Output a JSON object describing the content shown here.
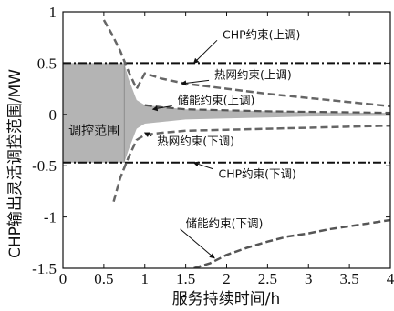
{
  "chart_data": {
    "type": "line",
    "title": "",
    "xlabel": "服务持续时间/h",
    "ylabel": "CHP输出灵活调控范围/MW",
    "xlim": [
      0,
      4
    ],
    "ylim": [
      -1.5,
      1
    ],
    "xticks": [
      0,
      0.5,
      1,
      1.5,
      2,
      2.5,
      3,
      3.5,
      4
    ],
    "xtick_labels": [
      "0",
      "0.5",
      "1",
      "1.5",
      "2",
      "2.5",
      "3",
      "3.5",
      "4"
    ],
    "yticks": [
      -1.5,
      -1,
      -0.5,
      0,
      0.5,
      1
    ],
    "ytick_labels": [
      "-1.5",
      "-1",
      "-0.5",
      "0",
      "0.5",
      "1"
    ],
    "grid": false,
    "legend": "none",
    "region": {
      "label": "调控范围",
      "color": "#b4b4b4",
      "upper": [
        [
          0,
          0.5
        ],
        [
          0.75,
          0.5
        ],
        [
          0.8,
          0.35
        ],
        [
          0.9,
          0.14
        ],
        [
          1,
          0.09
        ],
        [
          1.5,
          0.05
        ],
        [
          2,
          0.04
        ],
        [
          2.5,
          0.03
        ],
        [
          3,
          0.02
        ],
        [
          3.5,
          0.017
        ],
        [
          4,
          0.015
        ]
      ],
      "lower": [
        [
          0,
          -0.47
        ],
        [
          0.75,
          -0.47
        ],
        [
          0.8,
          -0.35
        ],
        [
          0.9,
          -0.14
        ],
        [
          1,
          -0.09
        ],
        [
          1.5,
          -0.05
        ],
        [
          2,
          -0.04
        ],
        [
          2.5,
          -0.03
        ],
        [
          3,
          -0.02
        ],
        [
          3.5,
          -0.017
        ],
        [
          4,
          -0.015
        ]
      ]
    },
    "series": [
      {
        "label": "CHP约束(上调)",
        "style": "dashdot",
        "color": "#111111",
        "width": 2,
        "points": [
          [
            0,
            0.5
          ],
          [
            4,
            0.5
          ]
        ]
      },
      {
        "label": "CHP约束(下调)",
        "style": "dashdot",
        "color": "#111111",
        "width": 2,
        "points": [
          [
            0,
            -0.47
          ],
          [
            4,
            -0.47
          ]
        ]
      },
      {
        "label": "热网约束(上调)",
        "style": "dash",
        "color": "#666666",
        "width": 2.5,
        "points": [
          [
            0.5,
            0.92
          ],
          [
            0.6,
            0.78
          ],
          [
            0.7,
            0.62
          ],
          [
            0.8,
            0.42
          ],
          [
            0.9,
            0.25
          ],
          [
            1,
            0.4
          ],
          [
            1.2,
            0.35
          ],
          [
            1.5,
            0.3
          ],
          [
            2,
            0.25
          ],
          [
            2.5,
            0.2
          ],
          [
            3,
            0.16
          ],
          [
            3.5,
            0.12
          ],
          [
            4,
            0.08
          ]
        ]
      },
      {
        "label": "热网约束(下调)",
        "style": "dash",
        "color": "#666666",
        "width": 2.5,
        "points": [
          [
            0.62,
            -0.85
          ],
          [
            0.7,
            -0.62
          ],
          [
            0.8,
            -0.42
          ],
          [
            0.9,
            -0.25
          ],
          [
            1,
            -0.2
          ],
          [
            1.2,
            -0.18
          ],
          [
            1.5,
            -0.16
          ],
          [
            2,
            -0.15
          ],
          [
            2.5,
            -0.14
          ],
          [
            3,
            -0.13
          ],
          [
            3.5,
            -0.12
          ],
          [
            4,
            -0.11
          ]
        ]
      },
      {
        "label": "储能约束(上调)",
        "style": "dash",
        "color": "#555555",
        "width": 2.2,
        "points": [
          [
            1,
            0.09
          ],
          [
            1.2,
            0.07
          ],
          [
            1.5,
            0.05
          ],
          [
            2,
            0.04
          ],
          [
            2.5,
            0.03
          ],
          [
            3,
            0.025
          ],
          [
            3.5,
            0.02
          ],
          [
            4,
            0.015
          ]
        ]
      },
      {
        "label": "储能约束(下调)",
        "style": "dash",
        "color": "#555555",
        "width": 2.5,
        "points": [
          [
            1.6,
            -1.5
          ],
          [
            1.8,
            -1.45
          ],
          [
            2,
            -1.37
          ],
          [
            2.25,
            -1.3
          ],
          [
            2.5,
            -1.24
          ],
          [
            2.75,
            -1.19
          ],
          [
            3,
            -1.16
          ],
          [
            3.25,
            -1.12
          ],
          [
            3.5,
            -1.09
          ],
          [
            3.75,
            -1.06
          ],
          [
            4,
            -1.03
          ]
        ]
      }
    ],
    "annotations": [
      {
        "text": "CHP约束(上调)",
        "at": [
          1.95,
          0.74
        ],
        "arrow_to": [
          1.6,
          0.5
        ]
      },
      {
        "text": "热网约束(上调)",
        "at": [
          1.85,
          0.35
        ],
        "arrow_to": [
          1.45,
          0.3
        ]
      },
      {
        "text": "储能约束(上调)",
        "at": [
          1.4,
          0.1
        ],
        "arrow_to": [
          1.1,
          0.05
        ]
      },
      {
        "text": "热网约束(下调)",
        "at": [
          1.15,
          -0.3
        ],
        "arrow_to": [
          1.0,
          -0.18
        ]
      },
      {
        "text": "CHP约束(下调)",
        "at": [
          1.9,
          -0.62
        ],
        "arrow_to": [
          1.6,
          -0.47
        ]
      },
      {
        "text": "储能约束(下调)",
        "at": [
          1.5,
          -1.1
        ],
        "arrow_to": [
          1.85,
          -1.4
        ]
      }
    ]
  }
}
